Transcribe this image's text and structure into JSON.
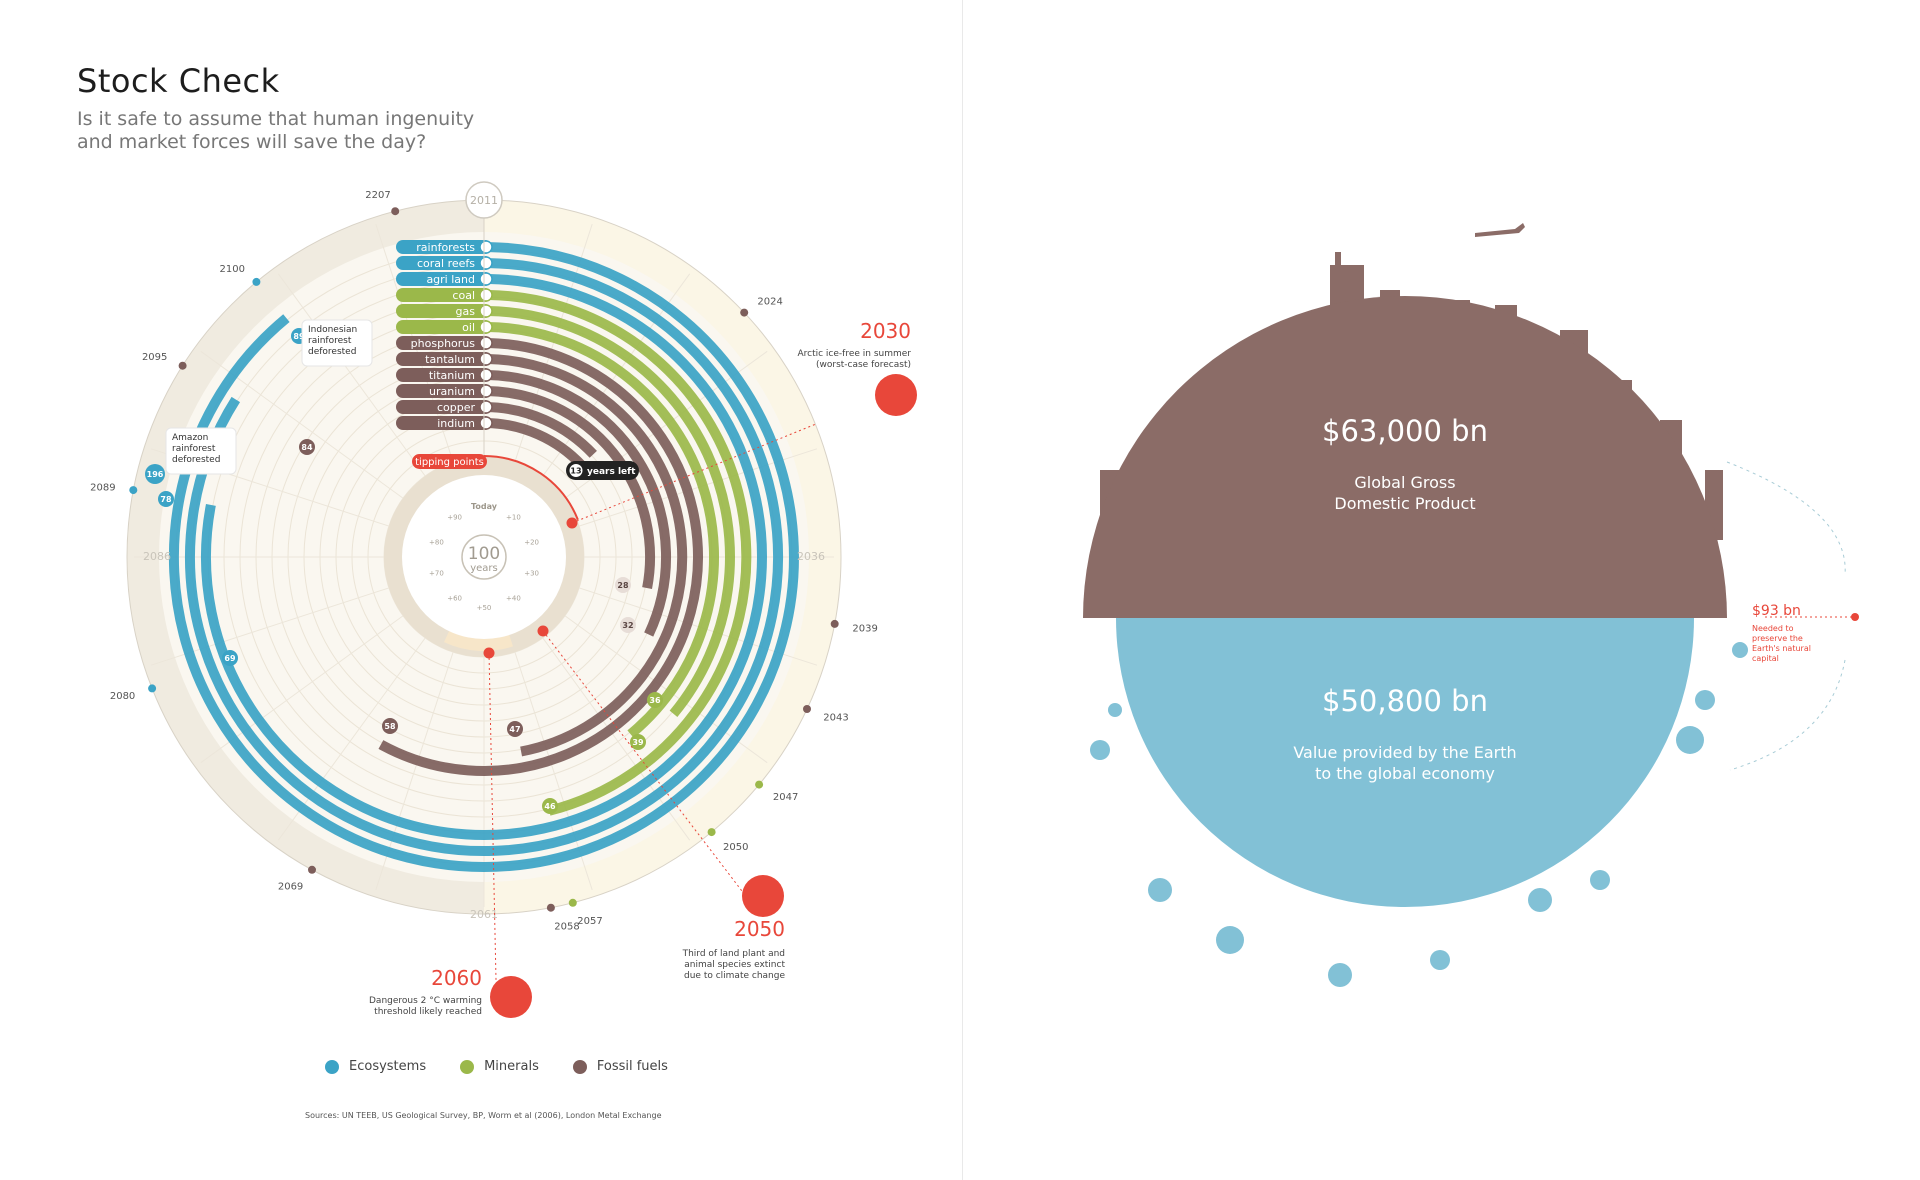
{
  "page": {
    "title": "Stock Check",
    "subtitle": [
      "Is it safe to assume that human ingenuity",
      "and market forces will save the day?"
    ],
    "sources": "Sources: UN TEEB, US Geological Survey, BP, Worm et al (2006), London Metal Exchange"
  },
  "colors": {
    "ecosystems": "#3ba3c6",
    "minerals": "#9bb84a",
    "fossil": "#7d5e5b",
    "red": "#e8473a",
    "gdp": "#8b6c67",
    "earth": "#82c1d6"
  },
  "legend": [
    {
      "label": "Ecosystems",
      "color": "#3ba3c6"
    },
    {
      "label": "Minerals",
      "color": "#9bb84a"
    },
    {
      "label": "Fossil fuels",
      "color": "#7d5e5b"
    }
  ],
  "chart_data": [
    {
      "type": "radial-bar",
      "start_label": "2011",
      "ring_labels": [
        "2086",
        "2036",
        "2061"
      ],
      "resources": [
        {
          "name": "rainforests",
          "category": "Ecosystems",
          "icon": "tree-icon",
          "depleted_year": 2100
        },
        {
          "name": "coral reefs",
          "category": "Ecosystems",
          "icon": "coral-icon",
          "depleted_year": 2095
        },
        {
          "name": "agri land",
          "category": "Ecosystems",
          "icon": "wheat-icon",
          "depleted_year": 2089
        },
        {
          "name": "coal",
          "category": "Minerals",
          "icon": "coal-icon",
          "depleted_year": 2057
        },
        {
          "name": "gas",
          "category": "Minerals",
          "icon": "flame-icon",
          "depleted_year": 2047
        },
        {
          "name": "oil",
          "category": "Minerals",
          "icon": "oil-icon",
          "depleted_year": 2050
        },
        {
          "name": "phosphorus",
          "category": "Fossil fuels",
          "icon": "phosphorus-icon",
          "depleted_year": 2069
        },
        {
          "name": "tantalum",
          "category": "Fossil fuels",
          "icon": "tantalum-icon",
          "depleted_year": 2058
        },
        {
          "name": "titanium",
          "category": "Fossil fuels",
          "icon": "titanium-icon",
          "depleted_year": 2043
        },
        {
          "name": "uranium",
          "category": "Fossil fuels",
          "icon": "uranium-icon",
          "depleted_year": 2039
        },
        {
          "name": "copper",
          "category": "Fossil fuels",
          "icon": "copper-icon",
          "depleted_year": 2024
        },
        {
          "name": "indium",
          "category": "Fossil fuels",
          "icon": "indium-icon",
          "depleted_year": 2024
        }
      ],
      "outer_year_ticks": [
        {
          "year": "2024",
          "category": "Fossil fuels"
        },
        {
          "year": "2039",
          "category": "Fossil fuels"
        },
        {
          "year": "2043",
          "category": "Fossil fuels"
        },
        {
          "year": "2047",
          "category": "Minerals"
        },
        {
          "year": "2050",
          "category": "Minerals"
        },
        {
          "year": "2057",
          "category": "Minerals"
        },
        {
          "year": "2058",
          "category": "Fossil fuels"
        },
        {
          "year": "2069",
          "category": "Fossil fuels"
        },
        {
          "year": "2080",
          "category": "Ecosystems"
        },
        {
          "year": "2089",
          "category": "Ecosystems"
        },
        {
          "year": "2095",
          "category": "Fossil fuels"
        },
        {
          "year": "2100",
          "category": "Ecosystems"
        },
        {
          "year": "2207",
          "category": "Fossil fuels"
        }
      ],
      "years_left_badges": [
        {
          "value": "13",
          "category": "Fossil fuels"
        },
        {
          "value": "28",
          "category": "Fossil fuels"
        },
        {
          "value": "32",
          "category": "Fossil fuels"
        },
        {
          "value": "36",
          "category": "Minerals"
        },
        {
          "value": "39",
          "category": "Minerals"
        },
        {
          "value": "46",
          "category": "Minerals"
        },
        {
          "value": "47",
          "category": "Fossil fuels"
        },
        {
          "value": "58",
          "category": "Fossil fuels"
        },
        {
          "value": "69",
          "category": "Ecosystems"
        },
        {
          "value": "78",
          "category": "Ecosystems"
        },
        {
          "value": "84",
          "category": "Fossil fuels"
        },
        {
          "value": "89",
          "category": "Ecosystems"
        },
        {
          "value": "196",
          "category": "Ecosystems"
        }
      ],
      "years_left_label": "years left",
      "tipping_points_label": "tipping points",
      "center": {
        "value": "100",
        "unit": "years",
        "today": "Today",
        "ticks": [
          "+10",
          "+20",
          "+30",
          "+40",
          "+50",
          "+60",
          "+70",
          "+80",
          "+90"
        ]
      },
      "tipping_points": [
        {
          "year": "2030",
          "text": [
            "Arctic ice-free in summer",
            "(worst-case forecast)"
          ],
          "icon": "iceberg-icon"
        },
        {
          "year": "2050",
          "text": [
            "Third of land plant and",
            "animal species extinct",
            "due to climate change"
          ],
          "icon": "palm-tree-icon"
        },
        {
          "year": "2060",
          "text": [
            "Dangerous 2 °C warming",
            "threshold likely reached"
          ],
          "icon": "sun-icon"
        }
      ],
      "callouts": [
        {
          "badge": "89",
          "text": [
            "Indonesian",
            "rainforest",
            "deforested"
          ]
        },
        {
          "badge": "196",
          "text": [
            "Amazon",
            "rainforest",
            "deforested"
          ]
        }
      ]
    },
    {
      "type": "pie",
      "categories": [
        "Global Gross Domestic Product",
        "Value provided by the Earth to the global economy"
      ],
      "values": [
        63000,
        50800
      ],
      "unit": "$ bn",
      "gdp": {
        "value": "$63,000 bn",
        "label": [
          "Global Gross",
          "Domestic Product"
        ]
      },
      "earth": {
        "value": "$50,800 bn",
        "label": [
          "Value provided by the Earth",
          "to the global economy"
        ]
      },
      "needed": {
        "value": "$93 bn",
        "text": [
          "Needed to",
          "preserve the",
          "Earth's natural",
          "capital"
        ]
      }
    }
  ]
}
